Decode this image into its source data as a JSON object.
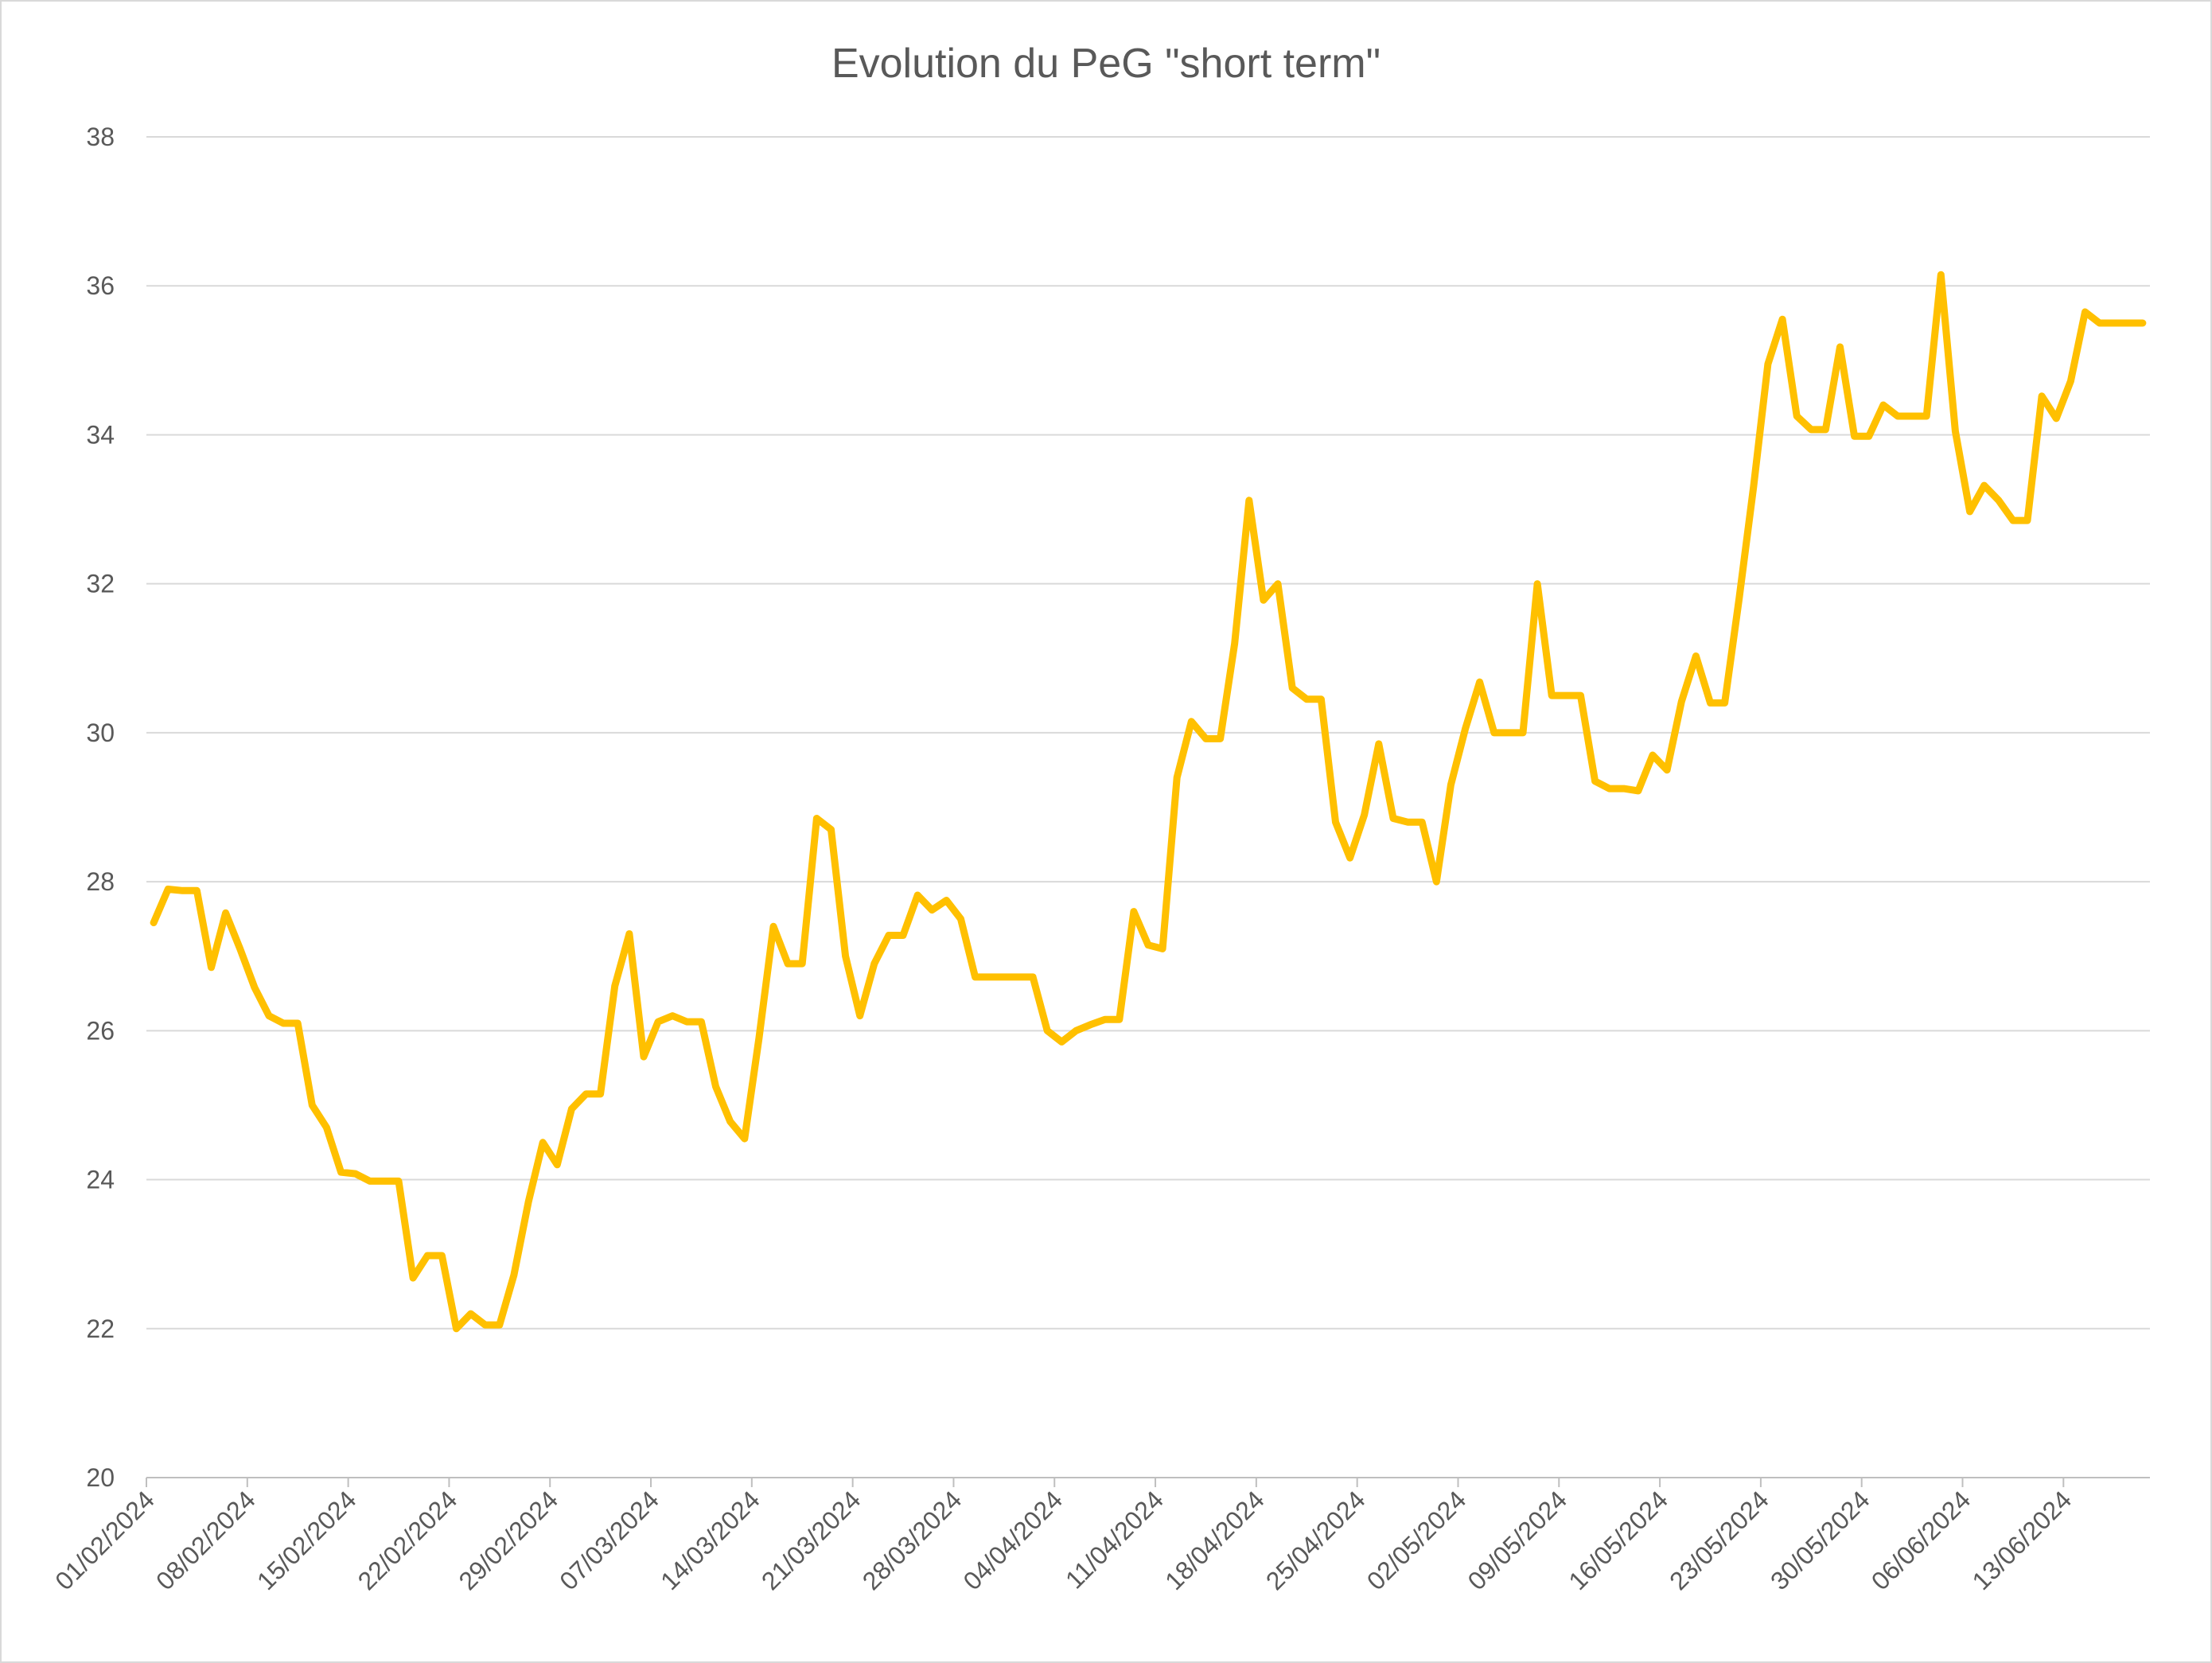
{
  "chart_data": {
    "type": "line",
    "title": "Evolution du PeG \"short term\"",
    "xlabel": "",
    "ylabel": "",
    "ylim": [
      20,
      38
    ],
    "ytick_step": 2,
    "grid": true,
    "legend": "none",
    "x_tick_labels": [
      "01/02/2024",
      "08/02/2024",
      "15/02/2024",
      "22/02/2024",
      "29/02/2024",
      "07/03/2024",
      "14/03/2024",
      "21/03/2024",
      "28/03/2024",
      "04/04/2024",
      "11/04/2024",
      "18/04/2024",
      "25/04/2024",
      "02/05/2024",
      "09/05/2024",
      "16/05/2024",
      "23/05/2024",
      "30/05/2024",
      "06/06/2024",
      "13/06/2024"
    ],
    "x_range_days": [
      0,
      139
    ],
    "x_tick_interval_days": 7,
    "color": "#FFC000",
    "series": [
      {
        "x": [
          0.5,
          1.5,
          2.5,
          3.5,
          4.5,
          5.5,
          6.5,
          7.5,
          8.5,
          9.5,
          10.5,
          11.5,
          12.5,
          13.5,
          14.5,
          15.5,
          16.5,
          17.5,
          18.5,
          19.5,
          20.5,
          21.5,
          22.5,
          23.5,
          24.5,
          25.5,
          26.5,
          27.5,
          28.5,
          29.5,
          30.5,
          31.5,
          32.5,
          33.5,
          34.5,
          35.5,
          36.5,
          37.5,
          38.5,
          39.5,
          40.5,
          41.5,
          42.5,
          43.5,
          44.5,
          45.5,
          46.5,
          47.5,
          48.5,
          49.5,
          50.5,
          51.5,
          52.5,
          53.5,
          54.5,
          55.5,
          56.5,
          57.5,
          58.5,
          59.5,
          60.5,
          61.5,
          62.5,
          63.5,
          64.5,
          65.5,
          66.5,
          67.5,
          68.5,
          69.5,
          70.5,
          71.5,
          72.5,
          73.5,
          74.5,
          75.5,
          76.5,
          77.5,
          78.5,
          79.5,
          80.5,
          81.5,
          82.5,
          83.5,
          84.5,
          85.5,
          86.5,
          87.5,
          88.5,
          89.5,
          90.5,
          91.5,
          92.5,
          93.5,
          94.5,
          95.5,
          96.5,
          97.5,
          98.5,
          99.5,
          100.5,
          101.5,
          102.5,
          103.5,
          104.5,
          105.5,
          106.5,
          107.5,
          108.5,
          109.5,
          110.5,
          111.5,
          112.5,
          113.5,
          114.5,
          115.5,
          116.5,
          117.5,
          118.5,
          119.5,
          120.5,
          121.5,
          122.5,
          123.5,
          124.5,
          125.5,
          126.5,
          127.5,
          128.5,
          129.5,
          130.5,
          131.5,
          132.5,
          133.5,
          134.5,
          135.5,
          136.5,
          137.5,
          138.5
        ],
        "values": [
          27.45,
          27.9,
          27.88,
          27.88,
          26.85,
          27.58,
          27.1,
          26.58,
          26.2,
          26.1,
          26.1,
          25.0,
          24.7,
          24.1,
          24.08,
          23.98,
          23.98,
          23.98,
          22.68,
          22.98,
          22.98,
          22.0,
          22.2,
          22.05,
          22.05,
          22.72,
          23.7,
          24.5,
          24.2,
          24.95,
          25.15,
          25.15,
          26.6,
          27.3,
          25.65,
          26.12,
          26.2,
          26.12,
          26.12,
          25.25,
          24.78,
          24.55,
          25.9,
          27.4,
          26.9,
          26.9,
          28.85,
          28.7,
          27.0,
          26.2,
          26.9,
          27.28,
          27.28,
          27.82,
          27.62,
          27.75,
          27.5,
          26.72,
          26.72,
          26.72,
          26.72,
          26.72,
          26.0,
          25.85,
          26.0,
          26.08,
          26.15,
          26.15,
          27.6,
          27.15,
          27.1,
          29.4,
          30.15,
          29.92,
          29.92,
          31.2,
          33.12,
          31.78,
          32.0,
          30.6,
          30.45,
          30.45,
          28.8,
          28.32,
          28.9,
          29.85,
          28.85,
          28.8,
          28.8,
          28.0,
          29.3,
          30.05,
          30.68,
          30.0,
          30.0,
          30.0,
          32.0,
          30.5,
          30.5,
          30.5,
          29.35,
          29.25,
          29.25,
          29.22,
          29.7,
          29.5,
          30.42,
          31.03,
          30.4,
          30.4,
          31.8,
          33.3,
          34.95,
          35.55,
          34.25,
          34.07,
          34.07,
          35.18,
          33.98,
          33.98,
          34.4,
          34.25,
          34.25,
          34.25,
          36.15,
          34.05,
          32.97,
          33.32,
          33.12,
          32.85,
          32.85,
          34.52,
          34.22,
          34.72,
          35.65,
          35.5,
          35.5,
          35.5,
          35.5
        ]
      }
    ]
  }
}
